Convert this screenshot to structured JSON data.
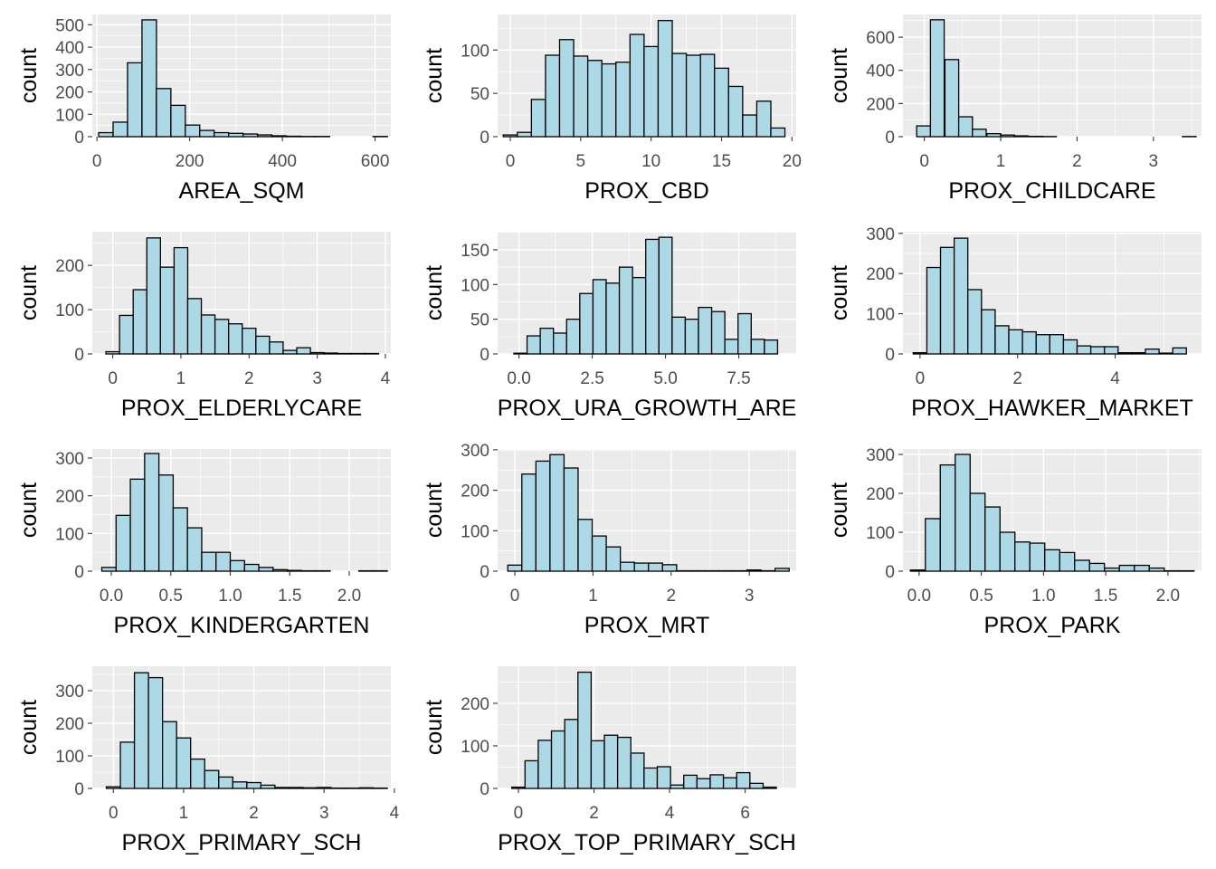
{
  "style": {
    "panel_background": "#ebebeb",
    "grid_color": "#ffffff",
    "bar_fill": "#add8e6",
    "bar_stroke": "#000000",
    "axis_text_color": "#4d4d4d",
    "title_text_color": "#000000"
  },
  "chart_data": [
    {
      "type": "bar",
      "xlabel": "AREA_SQM",
      "ylabel": "count",
      "xlim": [
        -10,
        634
      ],
      "ylim": [
        0,
        546
      ],
      "xticks": [
        0,
        200,
        400,
        600
      ],
      "yticks": [
        0,
        100,
        200,
        300,
        400,
        500
      ],
      "bins": [
        [
          19.3,
          18
        ],
        [
          50.5,
          65
        ],
        [
          81.6,
          330
        ],
        [
          112.8,
          522
        ],
        [
          143.9,
          215
        ],
        [
          175.1,
          140
        ],
        [
          206.2,
          52
        ],
        [
          237.3,
          28
        ],
        [
          268.5,
          18
        ],
        [
          299.6,
          15
        ],
        [
          330.8,
          12
        ],
        [
          361.9,
          8
        ],
        [
          393.1,
          4
        ],
        [
          424.2,
          2
        ],
        [
          455.3,
          1
        ],
        [
          486.5,
          1
        ],
        [
          517.6,
          0
        ],
        [
          548.8,
          0
        ],
        [
          579.9,
          0
        ],
        [
          611.1,
          1
        ]
      ]
    },
    {
      "type": "bar",
      "xlabel": "PROX_CBD",
      "ylabel": "count",
      "xlim": [
        -0.9,
        20.3
      ],
      "ylim": [
        0,
        141
      ],
      "xticks": [
        0,
        5,
        10,
        15,
        20
      ],
      "yticks": [
        0,
        50,
        100
      ],
      "bins": [
        [
          0,
          2
        ],
        [
          1,
          5
        ],
        [
          2,
          43
        ],
        [
          3,
          94
        ],
        [
          4,
          112
        ],
        [
          5,
          93
        ],
        [
          6,
          88
        ],
        [
          7,
          84
        ],
        [
          8,
          86
        ],
        [
          9,
          118
        ],
        [
          10,
          104
        ],
        [
          11,
          134
        ],
        [
          12,
          96
        ],
        [
          13,
          94
        ],
        [
          14,
          95
        ],
        [
          15,
          79
        ],
        [
          16,
          58
        ],
        [
          17,
          25
        ],
        [
          18,
          41
        ],
        [
          19,
          10
        ]
      ]
    },
    {
      "type": "bar",
      "xlabel": "PROX_CHILDCARE",
      "ylabel": "count",
      "xlim": [
        -0.28,
        3.63
      ],
      "ylim": [
        0,
        737
      ],
      "xticks": [
        0,
        1,
        2,
        3
      ],
      "yticks": [
        0,
        200,
        400,
        600
      ],
      "bins": [
        [
          -0.01,
          65
        ],
        [
          0.17,
          705
        ],
        [
          0.36,
          465
        ],
        [
          0.54,
          120
        ],
        [
          0.72,
          45
        ],
        [
          0.91,
          18
        ],
        [
          1.09,
          10
        ],
        [
          1.27,
          5
        ],
        [
          1.46,
          2
        ],
        [
          1.64,
          1
        ],
        [
          1.82,
          0
        ],
        [
          2.01,
          0
        ],
        [
          2.19,
          0
        ],
        [
          2.37,
          0
        ],
        [
          2.56,
          0
        ],
        [
          2.74,
          0
        ],
        [
          2.92,
          0
        ],
        [
          3.11,
          0
        ],
        [
          3.29,
          0
        ],
        [
          3.47,
          1
        ]
      ]
    },
    {
      "type": "bar",
      "xlabel": "PROX_ELDERLYCARE",
      "ylabel": "count",
      "xlim": [
        -0.3,
        4.08
      ],
      "ylim": [
        0,
        276
      ],
      "xticks": [
        0,
        1,
        2,
        3,
        4
      ],
      "yticks": [
        0,
        100,
        200
      ],
      "bins": [
        [
          0,
          5
        ],
        [
          0.2,
          87
        ],
        [
          0.4,
          145
        ],
        [
          0.6,
          262
        ],
        [
          0.8,
          196
        ],
        [
          1,
          240
        ],
        [
          1.2,
          125
        ],
        [
          1.4,
          88
        ],
        [
          1.6,
          78
        ],
        [
          1.8,
          68
        ],
        [
          2,
          58
        ],
        [
          2.2,
          40
        ],
        [
          2.4,
          27
        ],
        [
          2.6,
          8
        ],
        [
          2.8,
          14
        ],
        [
          3,
          3
        ],
        [
          3.2,
          2
        ],
        [
          3.4,
          1
        ],
        [
          3.6,
          1
        ],
        [
          3.8,
          1
        ]
      ]
    },
    {
      "type": "bar",
      "xlabel": "PROX_URA_GROWTH_ARE",
      "ylabel": "count",
      "xlim": [
        -0.73,
        9.46
      ],
      "ylim": [
        0,
        176
      ],
      "xticks": [
        0.0,
        2.5,
        5.0,
        7.5
      ],
      "yticks": [
        0,
        50,
        100,
        150
      ],
      "bins": [
        [
          0.05,
          1
        ],
        [
          0.5,
          26
        ],
        [
          0.95,
          37
        ],
        [
          1.4,
          30
        ],
        [
          1.85,
          50
        ],
        [
          2.3,
          87
        ],
        [
          2.75,
          107
        ],
        [
          3.2,
          102
        ],
        [
          3.65,
          125
        ],
        [
          4.1,
          110
        ],
        [
          4.55,
          165
        ],
        [
          5,
          168
        ],
        [
          5.45,
          53
        ],
        [
          5.9,
          50
        ],
        [
          6.35,
          67
        ],
        [
          6.8,
          61
        ],
        [
          7.25,
          21
        ],
        [
          7.7,
          58
        ],
        [
          8.15,
          21
        ],
        [
          8.6,
          20
        ]
      ]
    },
    {
      "type": "bar",
      "xlabel": "PROX_HAWKER_MARKET",
      "ylabel": "count",
      "xlim": [
        -0.35,
        5.77
      ],
      "ylim": [
        0,
        304
      ],
      "xticks": [
        0,
        2,
        4
      ],
      "yticks": [
        0,
        100,
        200,
        300
      ],
      "bins": [
        [
          0,
          3
        ],
        [
          0.28,
          215
        ],
        [
          0.56,
          265
        ],
        [
          0.84,
          288
        ],
        [
          1.12,
          160
        ],
        [
          1.4,
          110
        ],
        [
          1.68,
          70
        ],
        [
          1.96,
          60
        ],
        [
          2.24,
          55
        ],
        [
          2.52,
          48
        ],
        [
          2.8,
          48
        ],
        [
          3.08,
          35
        ],
        [
          3.36,
          20
        ],
        [
          3.64,
          18
        ],
        [
          3.92,
          18
        ],
        [
          4.2,
          3
        ],
        [
          4.48,
          3
        ],
        [
          4.76,
          12
        ],
        [
          5.04,
          2
        ],
        [
          5.32,
          15
        ]
      ]
    },
    {
      "type": "bar",
      "xlabel": "PROX_KINDERGARTEN",
      "ylabel": "count",
      "xlim": [
        -0.16,
        2.35
      ],
      "ylim": [
        0,
        324
      ],
      "xticks": [
        0.0,
        0.5,
        1.0,
        1.5,
        2.0
      ],
      "yticks": [
        0,
        100,
        200,
        300
      ],
      "bins": [
        [
          -0.02,
          10
        ],
        [
          0.1,
          148
        ],
        [
          0.22,
          244
        ],
        [
          0.34,
          312
        ],
        [
          0.46,
          255
        ],
        [
          0.58,
          168
        ],
        [
          0.7,
          115
        ],
        [
          0.82,
          50
        ],
        [
          0.94,
          50
        ],
        [
          1.06,
          28
        ],
        [
          1.18,
          18
        ],
        [
          1.3,
          10
        ],
        [
          1.42,
          4
        ],
        [
          1.54,
          2
        ],
        [
          1.66,
          1
        ],
        [
          1.78,
          1
        ],
        [
          1.9,
          0
        ],
        [
          2.02,
          0
        ],
        [
          2.14,
          1
        ],
        [
          2.26,
          1
        ]
      ]
    },
    {
      "type": "bar",
      "xlabel": "PROX_MRT",
      "ylabel": "count",
      "xlim": [
        -0.22,
        3.6
      ],
      "ylim": [
        0,
        302
      ],
      "xticks": [
        0,
        1,
        2,
        3
      ],
      "yticks": [
        0,
        100,
        200,
        300
      ],
      "bins": [
        [
          0,
          15
        ],
        [
          0.18,
          240
        ],
        [
          0.36,
          272
        ],
        [
          0.54,
          288
        ],
        [
          0.72,
          255
        ],
        [
          0.9,
          128
        ],
        [
          1.08,
          87
        ],
        [
          1.26,
          60
        ],
        [
          1.44,
          22
        ],
        [
          1.62,
          20
        ],
        [
          1.8,
          20
        ],
        [
          1.98,
          16
        ],
        [
          2.16,
          1
        ],
        [
          2.34,
          1
        ],
        [
          2.52,
          1
        ],
        [
          2.7,
          1
        ],
        [
          2.88,
          1
        ],
        [
          3.06,
          3
        ],
        [
          3.24,
          1
        ],
        [
          3.42,
          7
        ]
      ]
    },
    {
      "type": "bar",
      "xlabel": "PROX_PARK",
      "ylabel": "count",
      "xlim": [
        -0.13,
        2.27
      ],
      "ylim": [
        0,
        314
      ],
      "xticks": [
        0.0,
        0.5,
        1.0,
        1.5,
        2.0
      ],
      "yticks": [
        0,
        100,
        200,
        300
      ],
      "bins": [
        [
          -0.01,
          3
        ],
        [
          0.11,
          135
        ],
        [
          0.23,
          273
        ],
        [
          0.35,
          300
        ],
        [
          0.47,
          200
        ],
        [
          0.59,
          165
        ],
        [
          0.71,
          100
        ],
        [
          0.83,
          75
        ],
        [
          0.95,
          72
        ],
        [
          1.07,
          55
        ],
        [
          1.19,
          48
        ],
        [
          1.31,
          28
        ],
        [
          1.43,
          20
        ],
        [
          1.55,
          8
        ],
        [
          1.67,
          15
        ],
        [
          1.79,
          15
        ],
        [
          1.91,
          8
        ],
        [
          2.03,
          1
        ],
        [
          2.15,
          1
        ],
        [
          2.27,
          0
        ]
      ]
    },
    {
      "type": "bar",
      "xlabel": "PROX_PRIMARY_SCH",
      "ylabel": "count",
      "xlim": [
        -0.3,
        3.95
      ],
      "ylim": [
        0,
        375
      ],
      "xticks": [
        0,
        1,
        2,
        3,
        4
      ],
      "yticks": [
        0,
        100,
        200,
        300
      ],
      "bins": [
        [
          0,
          5
        ],
        [
          0.2,
          142
        ],
        [
          0.4,
          355
        ],
        [
          0.6,
          340
        ],
        [
          0.8,
          205
        ],
        [
          1,
          155
        ],
        [
          1.2,
          90
        ],
        [
          1.4,
          55
        ],
        [
          1.6,
          35
        ],
        [
          1.8,
          20
        ],
        [
          2,
          18
        ],
        [
          2.2,
          10
        ],
        [
          2.4,
          3
        ],
        [
          2.6,
          3
        ],
        [
          2.8,
          2
        ],
        [
          3,
          3
        ],
        [
          3.2,
          1
        ],
        [
          3.4,
          1
        ],
        [
          3.6,
          2
        ],
        [
          3.8,
          1
        ]
      ]
    },
    {
      "type": "bar",
      "xlabel": "PROX_TOP_PRIMARY_SCH",
      "ylabel": "count",
      "xlim": [
        -0.55,
        7.35
      ],
      "ylim": [
        0,
        287
      ],
      "xticks": [
        0,
        2,
        4,
        6
      ],
      "yticks": [
        0,
        100,
        200
      ],
      "bins": [
        [
          0,
          3
        ],
        [
          0.35,
          65
        ],
        [
          0.7,
          113
        ],
        [
          1.05,
          135
        ],
        [
          1.4,
          162
        ],
        [
          1.75,
          273
        ],
        [
          2.1,
          112
        ],
        [
          2.45,
          125
        ],
        [
          2.8,
          120
        ],
        [
          3.15,
          83
        ],
        [
          3.5,
          48
        ],
        [
          3.85,
          51
        ],
        [
          4.2,
          8
        ],
        [
          4.55,
          31
        ],
        [
          4.9,
          23
        ],
        [
          5.25,
          32
        ],
        [
          5.6,
          25
        ],
        [
          5.95,
          37
        ],
        [
          6.3,
          12
        ],
        [
          6.65,
          3
        ]
      ]
    }
  ]
}
